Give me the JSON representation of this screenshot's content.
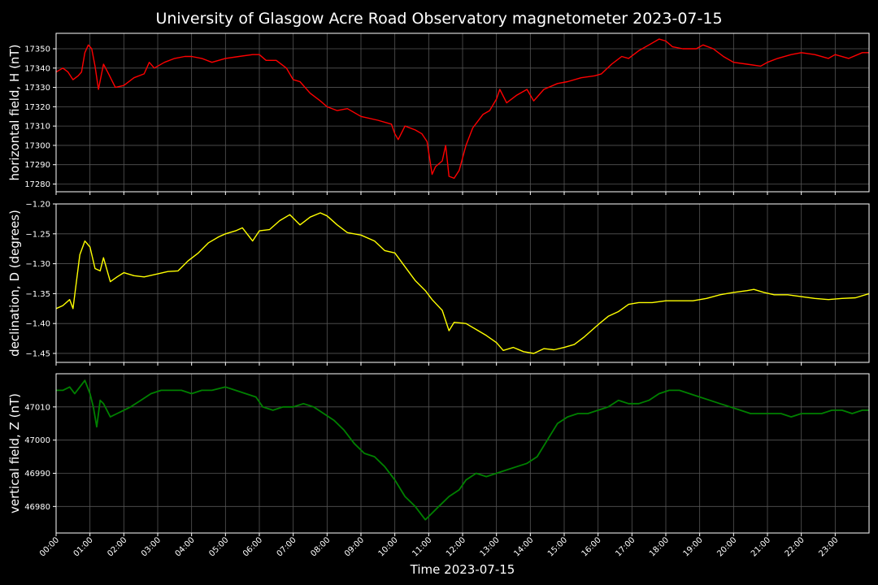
{
  "title": "University of Glasgow Acre Road Observatory magnetometer 2023-07-15",
  "chart_data": {
    "type": "line",
    "title": "University of Glasgow Acre Road Observatory magnetometer 2023-07-15",
    "xlabel": "Time 2023-07-15",
    "x_range_hours": [
      0,
      24
    ],
    "x_tick_labels": [
      "00:00",
      "01:00",
      "02:00",
      "03:00",
      "04:00",
      "05:00",
      "06:00",
      "07:00",
      "08:00",
      "09:00",
      "10:00",
      "11:00",
      "12:00",
      "13:00",
      "14:00",
      "15:00",
      "16:00",
      "17:00",
      "18:00",
      "19:00",
      "20:00",
      "21:00",
      "22:00",
      "23:00"
    ],
    "grid": true,
    "background": "#000000",
    "panels": [
      {
        "ylabel": "horizontal field, H (nT)",
        "color": "#ff0000",
        "ylim": [
          17276,
          17358
        ],
        "yticks": [
          17280,
          17290,
          17300,
          17310,
          17320,
          17330,
          17340,
          17350
        ],
        "ytick_labels": [
          "17280",
          "17290",
          "17300",
          "17310",
          "17320",
          "17330",
          "17340",
          "17350"
        ],
        "x": [
          0,
          0.2,
          0.35,
          0.5,
          0.65,
          0.75,
          0.85,
          0.95,
          1.05,
          1.15,
          1.25,
          1.4,
          1.55,
          1.75,
          2.0,
          2.3,
          2.6,
          2.75,
          2.9,
          3.2,
          3.5,
          3.8,
          4.0,
          4.3,
          4.6,
          5.0,
          5.4,
          5.8,
          6.0,
          6.2,
          6.5,
          6.8,
          7.0,
          7.2,
          7.5,
          7.8,
          8.0,
          8.3,
          8.6,
          9.0,
          9.5,
          9.9,
          10.0,
          10.1,
          10.3,
          10.6,
          10.8,
          10.95,
          11.1,
          11.2,
          11.4,
          11.5,
          11.6,
          11.75,
          11.9,
          12.1,
          12.3,
          12.6,
          12.8,
          13.0,
          13.1,
          13.3,
          13.6,
          13.9,
          14.1,
          14.4,
          14.8,
          15.1,
          15.5,
          15.9,
          16.1,
          16.4,
          16.7,
          16.9,
          17.2,
          17.5,
          17.8,
          18.0,
          18.2,
          18.5,
          18.9,
          19.1,
          19.4,
          19.7,
          20.0,
          20.4,
          20.8,
          21.0,
          21.3,
          21.7,
          22.0,
          22.4,
          22.8,
          23.0,
          23.4,
          23.8,
          24.0
        ],
        "y": [
          17338,
          17340,
          17338,
          17334,
          17336,
          17338,
          17348,
          17352,
          17350,
          17341,
          17329,
          17342,
          17337,
          17330,
          17331,
          17335,
          17337,
          17343,
          17340,
          17343,
          17345,
          17346,
          17346,
          17345,
          17343,
          17345,
          17346,
          17347,
          17347,
          17344,
          17344,
          17340,
          17334,
          17333,
          17327,
          17323,
          17320,
          17318,
          17319,
          17315,
          17313,
          17311,
          17306,
          17303,
          17310,
          17308,
          17306,
          17302,
          17285,
          17289,
          17292,
          17300,
          17284,
          17283,
          17287,
          17300,
          17309,
          17316,
          17318,
          17324,
          17329,
          17322,
          17326,
          17329,
          17323,
          17329,
          17332,
          17333,
          17335,
          17336,
          17337,
          17342,
          17346,
          17345,
          17349,
          17352,
          17355,
          17354,
          17351,
          17350,
          17350,
          17352,
          17350,
          17346,
          17343,
          17342,
          17341,
          17343,
          17345,
          17347,
          17348,
          17347,
          17345,
          17347,
          17345,
          17348,
          17348
        ]
      },
      {
        "ylabel": "declination, D (degrees)",
        "color": "#ffff00",
        "ylim": [
          -1.465,
          -1.2
        ],
        "yticks": [
          -1.45,
          -1.4,
          -1.35,
          -1.3,
          -1.25,
          -1.2
        ],
        "ytick_labels": [
          "−1.45",
          "−1.40",
          "−1.35",
          "−1.30",
          "−1.25",
          "−1.20"
        ],
        "x": [
          0,
          0.2,
          0.4,
          0.5,
          0.6,
          0.7,
          0.85,
          1.0,
          1.15,
          1.3,
          1.4,
          1.5,
          1.6,
          1.8,
          2.0,
          2.3,
          2.6,
          3.0,
          3.3,
          3.6,
          3.9,
          4.2,
          4.5,
          4.8,
          5.0,
          5.3,
          5.5,
          5.8,
          6.0,
          6.3,
          6.6,
          6.9,
          7.2,
          7.5,
          7.8,
          8.0,
          8.3,
          8.6,
          9.0,
          9.4,
          9.7,
          10.0,
          10.3,
          10.6,
          10.9,
          11.1,
          11.4,
          11.6,
          11.75,
          12.1,
          12.4,
          12.7,
          13.0,
          13.2,
          13.5,
          13.8,
          14.1,
          14.4,
          14.7,
          15.0,
          15.3,
          15.6,
          16.0,
          16.3,
          16.6,
          16.9,
          17.2,
          17.6,
          18.0,
          18.4,
          18.8,
          19.2,
          19.6,
          20.0,
          20.4,
          20.6,
          20.9,
          21.2,
          21.6,
          22.0,
          22.4,
          22.8,
          23.2,
          23.6,
          24.0
        ],
        "y": [
          -1.375,
          -1.37,
          -1.36,
          -1.375,
          -1.33,
          -1.285,
          -1.262,
          -1.272,
          -1.308,
          -1.312,
          -1.29,
          -1.31,
          -1.33,
          -1.322,
          -1.315,
          -1.32,
          -1.322,
          -1.317,
          -1.313,
          -1.312,
          -1.295,
          -1.282,
          -1.265,
          -1.255,
          -1.25,
          -1.245,
          -1.24,
          -1.262,
          -1.245,
          -1.243,
          -1.228,
          -1.218,
          -1.235,
          -1.222,
          -1.215,
          -1.22,
          -1.235,
          -1.248,
          -1.252,
          -1.262,
          -1.278,
          -1.282,
          -1.305,
          -1.328,
          -1.345,
          -1.36,
          -1.378,
          -1.412,
          -1.398,
          -1.4,
          -1.41,
          -1.42,
          -1.432,
          -1.445,
          -1.44,
          -1.447,
          -1.45,
          -1.442,
          -1.444,
          -1.44,
          -1.435,
          -1.422,
          -1.402,
          -1.388,
          -1.38,
          -1.368,
          -1.365,
          -1.365,
          -1.362,
          -1.362,
          -1.362,
          -1.358,
          -1.352,
          -1.348,
          -1.345,
          -1.343,
          -1.348,
          -1.352,
          -1.352,
          -1.355,
          -1.358,
          -1.36,
          -1.358,
          -1.357,
          -1.35
        ]
      },
      {
        "ylabel": "vertical field, Z (nT)",
        "color": "#008000",
        "ylim": [
          46972,
          47020
        ],
        "yticks": [
          46980,
          46990,
          47000,
          47010
        ],
        "ytick_labels": [
          "46980",
          "46990",
          "47000",
          "47010"
        ],
        "x": [
          0,
          0.2,
          0.4,
          0.55,
          0.7,
          0.85,
          1.0,
          1.1,
          1.2,
          1.3,
          1.4,
          1.6,
          1.8,
          2.0,
          2.2,
          2.5,
          2.8,
          3.1,
          3.4,
          3.7,
          4.0,
          4.3,
          4.6,
          5.0,
          5.3,
          5.6,
          5.9,
          6.1,
          6.4,
          6.7,
          7.0,
          7.3,
          7.6,
          7.9,
          8.2,
          8.5,
          8.8,
          9.1,
          9.4,
          9.7,
          10.0,
          10.3,
          10.6,
          10.9,
          11.1,
          11.3,
          11.6,
          11.9,
          12.1,
          12.4,
          12.7,
          13.0,
          13.3,
          13.6,
          13.9,
          14.2,
          14.5,
          14.8,
          15.1,
          15.4,
          15.7,
          16.0,
          16.3,
          16.6,
          16.9,
          17.2,
          17.5,
          17.8,
          18.1,
          18.4,
          18.7,
          19.0,
          19.3,
          19.6,
          19.9,
          20.2,
          20.5,
          20.8,
          21.1,
          21.4,
          21.7,
          22.0,
          22.3,
          22.6,
          22.9,
          23.2,
          23.5,
          23.8,
          24.0
        ],
        "y": [
          47015,
          47015,
          47016,
          47014,
          47016,
          47018,
          47014,
          47010,
          47004,
          47012,
          47011,
          47007,
          47008,
          47009,
          47010,
          47012,
          47014,
          47015,
          47015,
          47015,
          47014,
          47015,
          47015,
          47016,
          47015,
          47014,
          47013,
          47010,
          47009,
          47010,
          47010,
          47011,
          47010,
          47008,
          47006,
          47003,
          46999,
          46996,
          46995,
          46992,
          46988,
          46983,
          46980,
          46976,
          46978,
          46980,
          46983,
          46985,
          46988,
          46990,
          46989,
          46990,
          46991,
          46992,
          46993,
          46995,
          47000,
          47005,
          47007,
          47008,
          47008,
          47009,
          47010,
          47012,
          47011,
          47011,
          47012,
          47014,
          47015,
          47015,
          47014,
          47013,
          47012,
          47011,
          47010,
          47009,
          47008,
          47008,
          47008,
          47008,
          47007,
          47008,
          47008,
          47008,
          47009,
          47009,
          47008,
          47009,
          47009
        ]
      }
    ]
  }
}
